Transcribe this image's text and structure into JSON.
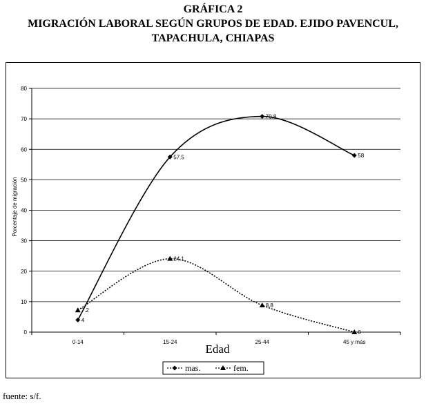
{
  "title_lines": [
    "GRÁFICA 2",
    "MIGRACIÓN LABORAL SEGÚN GRUPOS DE EDAD. EJIDO PAVENCUL,",
    "TAPACHULA, CHIAPAS"
  ],
  "source": "fuente: s/f.",
  "chart_data": {
    "type": "line",
    "title": "",
    "xlabel": "Edad",
    "ylabel": "Porcentaje de migración",
    "categories": [
      "0-14",
      "15-24",
      "25-44",
      "45 y más"
    ],
    "ylim": [
      0,
      80
    ],
    "yticks": [
      "0",
      "10",
      "20",
      "30",
      "40",
      "50",
      "60",
      "70",
      "80"
    ],
    "grid": true,
    "legend_position": "bottom",
    "series": [
      {
        "name": "mas.",
        "values": [
          4,
          57.5,
          70.8,
          58
        ],
        "labels": [
          "4",
          "57.5",
          "70.8",
          "58"
        ],
        "marker": "diamond",
        "line": "solid",
        "color": "#000000"
      },
      {
        "name": "fem.",
        "values": [
          7.2,
          24.1,
          8.8,
          0
        ],
        "labels": [
          "7.2",
          "24.1",
          "8.8",
          "0"
        ],
        "marker": "triangle",
        "line": "dotted",
        "color": "#000000"
      }
    ]
  }
}
